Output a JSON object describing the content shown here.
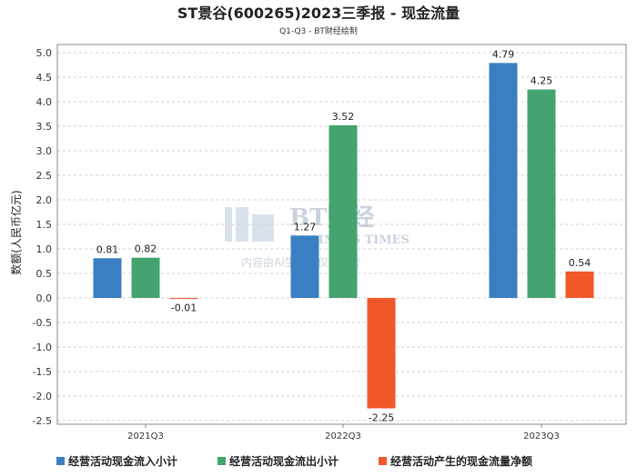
{
  "chart_data": {
    "type": "bar",
    "title": "ST景谷(600265)2023三季报 - 现金流量",
    "subtitle": "Q1-Q3 - BT财经绘制",
    "ylabel": "数额(人民币亿元)",
    "categories": [
      "2021Q3",
      "2022Q3",
      "2023Q3"
    ],
    "ylim": [
      -2.5,
      5.0
    ],
    "yticks": [
      -2.5,
      -2.0,
      -1.5,
      -1.0,
      -0.5,
      0.0,
      0.5,
      1.0,
      1.5,
      2.0,
      2.5,
      3.0,
      3.5,
      4.0,
      4.5,
      5.0
    ],
    "grid": true,
    "legend_position": "bottom",
    "series": [
      {
        "name": "经营活动现金流入小计",
        "color": "#3a7fc1",
        "values": [
          0.81,
          1.27,
          4.79
        ]
      },
      {
        "name": "经营活动现金流出小计",
        "color": "#44a36f",
        "values": [
          0.82,
          3.52,
          4.25
        ]
      },
      {
        "name": "经营活动产生的现金流量净额",
        "color": "#f0582a",
        "values": [
          -0.01,
          -2.25,
          0.54
        ]
      }
    ]
  },
  "watermark": {
    "brand": "BT财经",
    "brand_en": "BUSINESS TIMES",
    "note": "内容由AI生成，仅供参考"
  }
}
